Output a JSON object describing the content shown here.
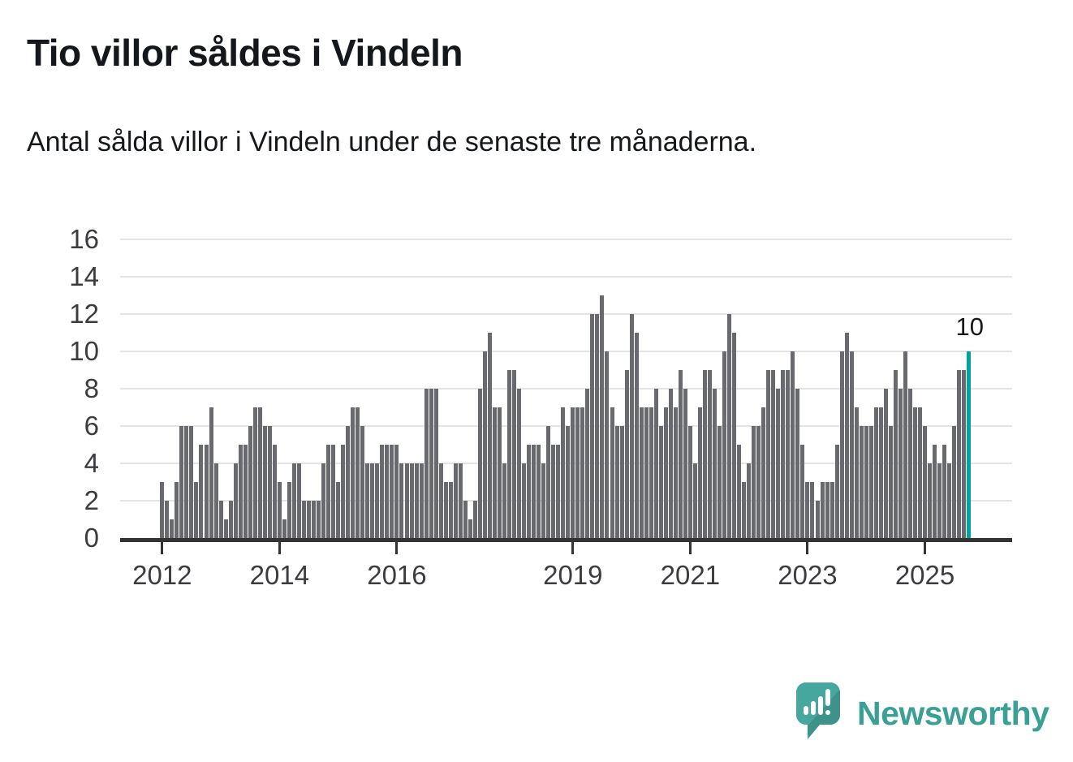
{
  "header": {
    "title": "Tio villor såldes i Vindeln",
    "subtitle": "Antal sålda villor i Vindeln under de senaste tre månaderna."
  },
  "chart_data": {
    "type": "bar",
    "title": "Tio villor såldes i Vindeln",
    "xlabel": "",
    "ylabel": "",
    "x_start": "2012-01",
    "x_frequency": "monthly",
    "ylim": [
      0,
      16
    ],
    "grid": true,
    "y_ticks": [
      0,
      2,
      4,
      6,
      8,
      10,
      12,
      14,
      16
    ],
    "x_ticks": [
      {
        "label": "2012",
        "month_index": 0
      },
      {
        "label": "2014",
        "month_index": 24
      },
      {
        "label": "2016",
        "month_index": 48
      },
      {
        "label": "2019",
        "month_index": 84
      },
      {
        "label": "2021",
        "month_index": 108
      },
      {
        "label": "2023",
        "month_index": 132
      },
      {
        "label": "2025",
        "month_index": 156
      }
    ],
    "values": [
      3,
      2,
      1,
      3,
      6,
      6,
      6,
      3,
      5,
      5,
      7,
      4,
      2,
      1,
      2,
      4,
      5,
      5,
      6,
      7,
      7,
      6,
      6,
      5,
      3,
      1,
      3,
      4,
      4,
      2,
      2,
      2,
      2,
      4,
      5,
      5,
      3,
      5,
      6,
      7,
      7,
      6,
      4,
      4,
      4,
      5,
      5,
      5,
      5,
      4,
      4,
      4,
      4,
      4,
      8,
      8,
      8,
      4,
      3,
      3,
      4,
      4,
      2,
      1,
      2,
      8,
      10,
      11,
      7,
      7,
      4,
      9,
      9,
      8,
      4,
      5,
      5,
      5,
      4,
      6,
      5,
      5,
      7,
      6,
      7,
      7,
      7,
      8,
      12,
      12,
      13,
      10,
      7,
      6,
      6,
      9,
      12,
      11,
      7,
      7,
      7,
      8,
      6,
      7,
      8,
      7,
      9,
      8,
      6,
      4,
      7,
      9,
      9,
      8,
      6,
      10,
      12,
      11,
      5,
      3,
      4,
      6,
      6,
      7,
      9,
      9,
      8,
      9,
      9,
      10,
      8,
      5,
      3,
      3,
      2,
      3,
      3,
      3,
      5,
      10,
      11,
      10,
      7,
      6,
      6,
      6,
      7,
      7,
      8,
      6,
      9,
      8,
      10,
      8,
      7,
      7,
      6,
      4,
      5,
      4,
      5,
      4,
      6,
      9,
      9,
      10
    ],
    "highlight": {
      "position": "last",
      "value": 10,
      "label": "10"
    },
    "colors": {
      "bar": "#696970",
      "highlight": "#00a49e",
      "gridline": "#e4e4e4",
      "axis": "#333333"
    }
  },
  "footer": {
    "brand": "Newsworthy",
    "brand_color": "#3aa096",
    "icon_color": "#46a79e",
    "icon_shade_color": "#35948c"
  }
}
